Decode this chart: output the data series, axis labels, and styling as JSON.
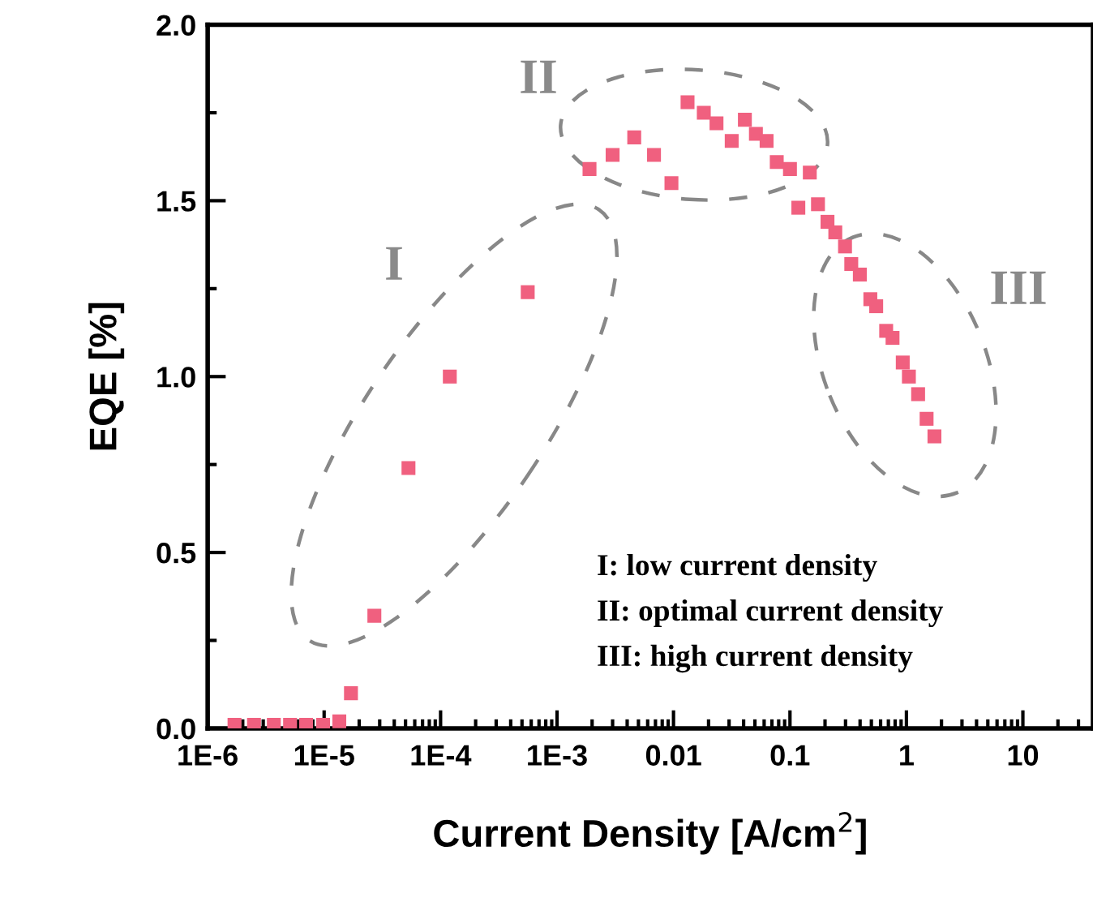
{
  "chart_data": {
    "type": "scatter",
    "xlabel": "Current Density [A/cm$^{2}$]",
    "ylabel": "EQE [%]",
    "x": [
      1.7e-06,
      2.5e-06,
      3.7e-06,
      5.1e-06,
      7e-06,
      9.8e-06,
      1.35e-05,
      1.7e-05,
      2.7e-05,
      5.3e-05,
      0.00012,
      0.00056,
      0.0019,
      0.003,
      0.0046,
      0.0068,
      0.0096,
      0.0132,
      0.0182,
      0.0234,
      0.0316,
      0.041,
      0.051,
      0.063,
      0.077,
      0.1,
      0.118,
      0.148,
      0.174,
      0.21,
      0.245,
      0.297,
      0.336,
      0.398,
      0.49,
      0.55,
      0.67,
      0.76,
      0.93,
      1.05,
      1.26,
      1.49,
      1.74
    ],
    "series": [
      {
        "color": "#f0607f",
        "values": [
          0.01,
          0.01,
          0.01,
          0.01,
          0.01,
          0.01,
          0.02,
          0.1,
          0.32,
          0.74,
          1.0,
          1.24,
          1.59,
          1.63,
          1.68,
          1.63,
          1.55,
          1.78,
          1.75,
          1.72,
          1.67,
          1.73,
          1.69,
          1.67,
          1.61,
          1.59,
          1.48,
          1.58,
          1.49,
          1.44,
          1.41,
          1.37,
          1.32,
          1.29,
          1.22,
          1.2,
          1.13,
          1.11,
          1.04,
          1.0,
          0.95,
          0.88,
          0.83
        ]
      }
    ],
    "marker": "square",
    "log": "x",
    "grid": false,
    "xlim": [
      1e-06,
      40
    ],
    "ylim": [
      0,
      2
    ],
    "xticks": [
      {
        "value": 1e-06,
        "label": "1E-6"
      },
      {
        "value": 1e-05,
        "label": "1E-5"
      },
      {
        "value": 0.0001,
        "label": "1E-4"
      },
      {
        "value": 0.001,
        "label": "1E-3"
      },
      0.01,
      0.1,
      1,
      10
    ],
    "yticks": [
      {
        "value": 0,
        "label": "0.0"
      },
      0.5,
      {
        "value": 1,
        "label": "1.0"
      },
      1.5,
      {
        "value": 2,
        "label": "2.0"
      }
    ],
    "annotations": [
      "I",
      "II",
      "III",
      "I: low current density",
      "II: optimal current density",
      "III: high current density"
    ]
  }
}
